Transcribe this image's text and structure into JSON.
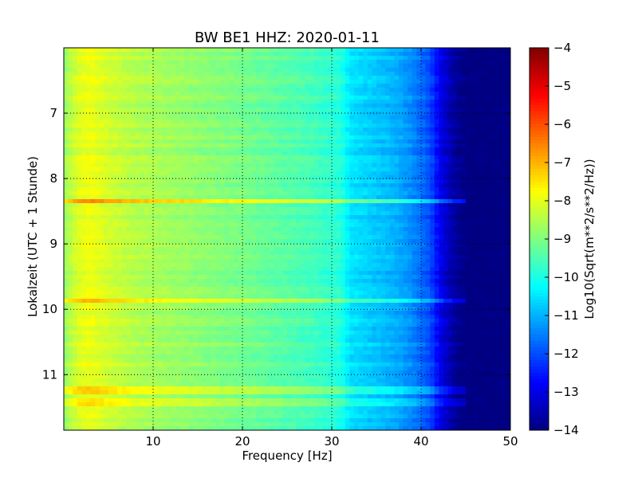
{
  "chart_data": {
    "type": "heatmap",
    "title": "BW BE1 HHZ: 2020-01-11",
    "xlabel": "Frequency [Hz]",
    "ylabel": "Lokalzeit (UTC + 1 Stunde)",
    "xlim": [
      0,
      50
    ],
    "ylim": [
      6,
      11.85
    ],
    "y_inverted": true,
    "x_ticks": [
      10,
      20,
      30,
      40,
      50
    ],
    "y_ticks": [
      7,
      8,
      9,
      10,
      11
    ],
    "grid": true,
    "colormap": "jet",
    "colorbar": {
      "label": "Log10(Sqrt(m**2/s**2/Hz))",
      "range": [
        -14,
        -4
      ],
      "ticks": [
        -4,
        -5,
        -6,
        -7,
        -8,
        -9,
        -10,
        -11,
        -12,
        -13,
        -14
      ]
    },
    "noise_profile": {
      "frequency_hz": [
        0,
        1,
        2,
        3,
        5,
        8,
        12,
        16,
        20,
        25,
        28,
        31,
        32,
        34,
        37,
        39,
        41,
        42,
        43,
        44,
        45,
        50
      ],
      "log10_amplitude": [
        -8.8,
        -8.3,
        -8.0,
        -7.9,
        -8.2,
        -8.5,
        -8.7,
        -8.9,
        -9.1,
        -9.4,
        -9.6,
        -9.9,
        -10.5,
        -10.7,
        -11.0,
        -11.4,
        -12.0,
        -12.8,
        -13.4,
        -13.8,
        -14.0,
        -14.0
      ]
    },
    "horizontal_bands": [
      {
        "time": 8.35,
        "delta_log10": 1.2
      },
      {
        "time": 9.88,
        "delta_log10": 1.0
      },
      {
        "time": 11.24,
        "delta_log10": 0.8
      },
      {
        "time": 11.42,
        "delta_log10": 0.5
      }
    ]
  }
}
